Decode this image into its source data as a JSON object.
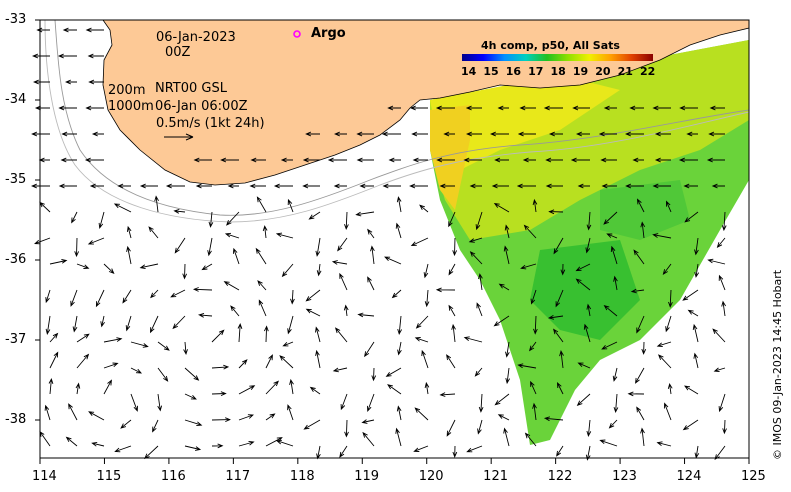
{
  "map": {
    "date": "06-Jan-2023",
    "hour": "00Z",
    "argo_label": "Argo",
    "contour_line1": "200m",
    "contour_line2": "1000m",
    "current_source": "NRT00 GSL",
    "current_time": "06-Jan 06:00Z",
    "scale_vector_label": "0.5m/s (1kt 24h)",
    "sst_title": "4h comp, p50, All Sats",
    "sst_ticks": [
      "14",
      "15",
      "16",
      "17",
      "18",
      "19",
      "20",
      "21",
      "22"
    ],
    "credit": "© IMOS 09-Jan-2023 14:45 Hobart",
    "lon_ticks": [
      "114",
      "115",
      "116",
      "117",
      "118",
      "119",
      "120",
      "121",
      "122",
      "123",
      "124",
      "125"
    ],
    "lat_ticks": [
      "-33",
      "-34",
      "-35",
      "-36",
      "-37",
      "-38"
    ],
    "colors": {
      "land": "#fdc996",
      "argo": "#ff00ff",
      "colorbar": [
        "#00008b",
        "#0000ff",
        "#0090ff",
        "#00d0c0",
        "#20c020",
        "#90e000",
        "#f0f000",
        "#ffa000",
        "#e04000",
        "#8b0000"
      ]
    }
  }
}
